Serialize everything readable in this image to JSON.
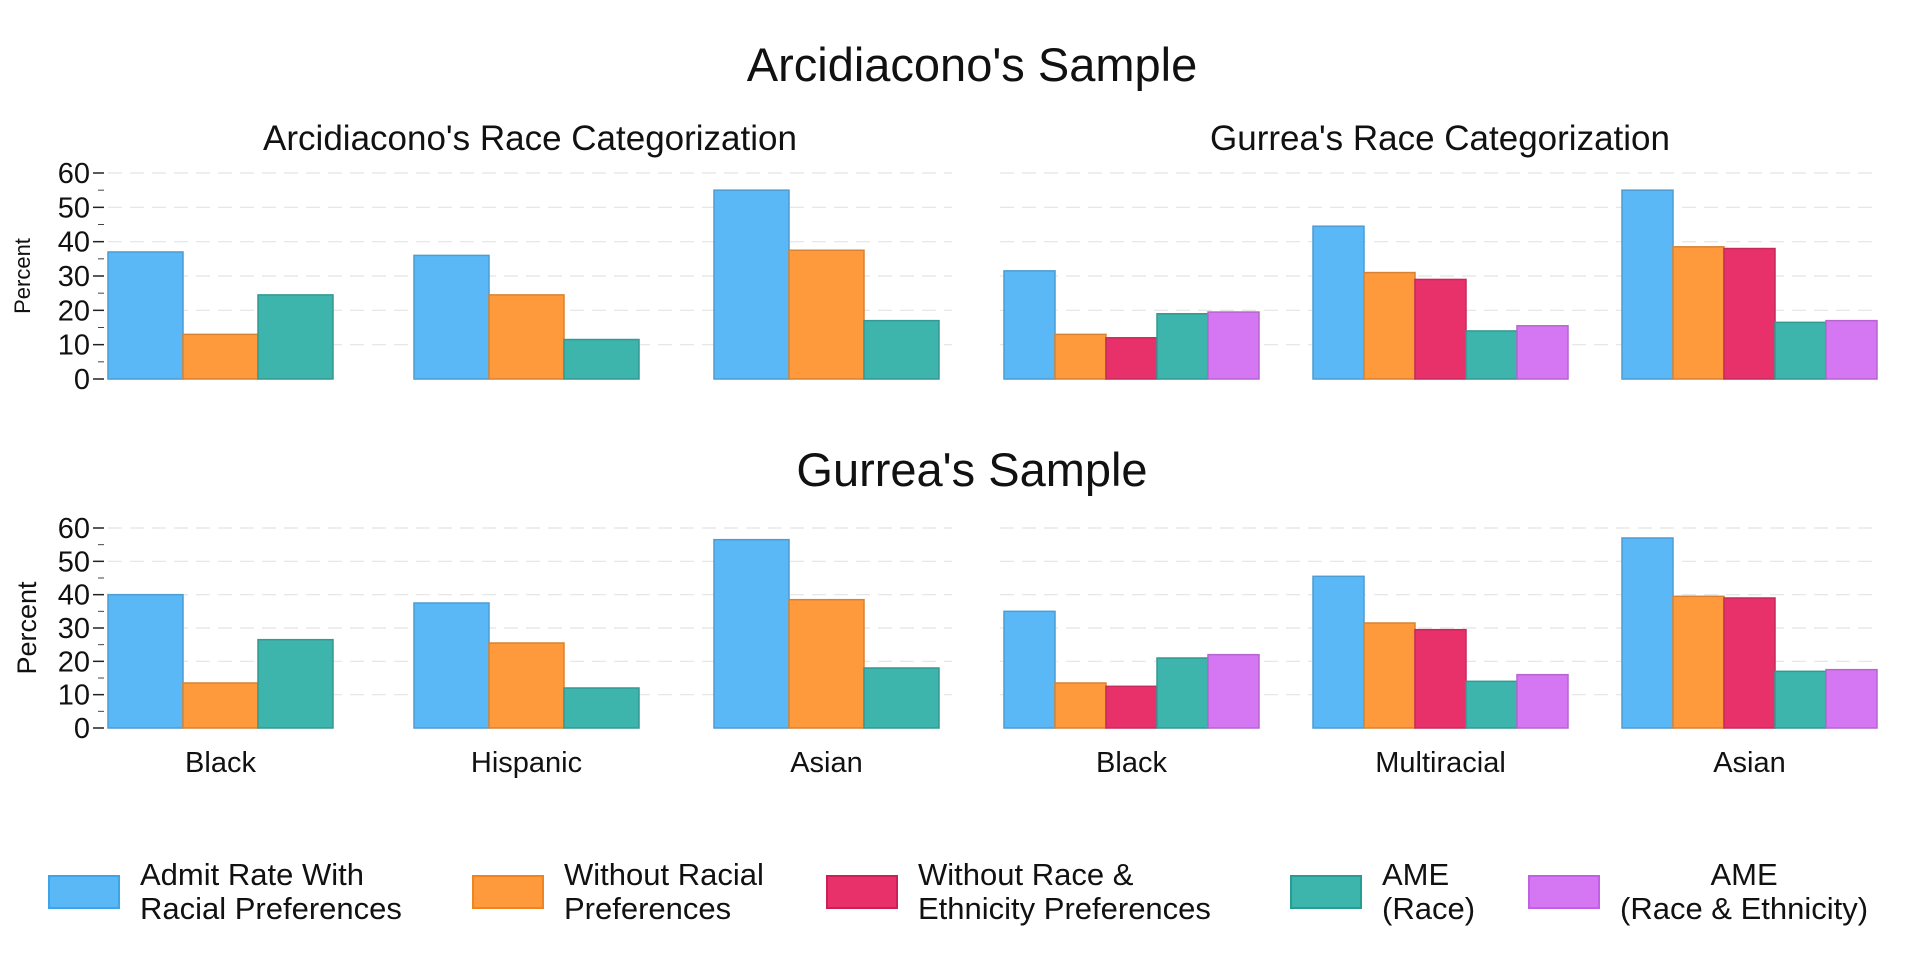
{
  "chart_data": {
    "type": "bar",
    "colors": {
      "admit": "#5ab8f7",
      "without_racial": "#fe9a3c",
      "without_race_eth": "#e8316a",
      "ame_race": "#3db4ac",
      "ame_race_eth": "#d577f3"
    },
    "series_labels": {
      "admit": "Admit Rate With\nRacial Preferences",
      "without_racial": "Without Racial\nPreferences",
      "without_race_eth": "Without Race &\nEthnicity Preferences",
      "ame_race": "AME\n(Race)",
      "ame_race_eth": "AME\n(Race & Ethnicity)"
    },
    "ylabel": "Percent",
    "ylim": [
      0,
      60
    ],
    "yticks": [
      0,
      10,
      20,
      30,
      40,
      50,
      60
    ],
    "rows": [
      {
        "title": "Arcidiacono's Sample",
        "panels": [
          {
            "title": "Arcidiacono's Race Categorization",
            "series_keys": [
              "admit",
              "without_racial",
              "ame_race"
            ],
            "categories": [
              "Black",
              "Hispanic",
              "Asian"
            ],
            "values": [
              [
                37,
                13,
                24.5
              ],
              [
                36,
                24.5,
                11.5
              ],
              [
                55,
                37.5,
                17
              ]
            ]
          },
          {
            "title": "Gurrea's Race Categorization",
            "series_keys": [
              "admit",
              "without_racial",
              "without_race_eth",
              "ame_race",
              "ame_race_eth"
            ],
            "categories": [
              "Black",
              "Multiracial",
              "Asian"
            ],
            "values": [
              [
                31.5,
                13,
                12,
                19,
                19.5
              ],
              [
                44.5,
                31,
                29,
                14,
                15.5
              ],
              [
                55,
                38.5,
                38,
                16.5,
                17
              ]
            ]
          }
        ]
      },
      {
        "title": "Gurrea's Sample",
        "panels": [
          {
            "title": "",
            "series_keys": [
              "admit",
              "without_racial",
              "ame_race"
            ],
            "categories": [
              "Black",
              "Hispanic",
              "Asian"
            ],
            "values": [
              [
                40,
                13.5,
                26.5
              ],
              [
                37.5,
                25.5,
                12
              ],
              [
                56.5,
                38.5,
                18
              ]
            ]
          },
          {
            "title": "",
            "series_keys": [
              "admit",
              "without_racial",
              "without_race_eth",
              "ame_race",
              "ame_race_eth"
            ],
            "categories": [
              "Black",
              "Multiracial",
              "Asian"
            ],
            "values": [
              [
                35,
                13.5,
                12.5,
                21,
                22
              ],
              [
                45.5,
                31.5,
                29.5,
                14,
                16
              ],
              [
                57,
                39.5,
                39,
                17,
                17.5
              ]
            ]
          }
        ]
      }
    ]
  }
}
